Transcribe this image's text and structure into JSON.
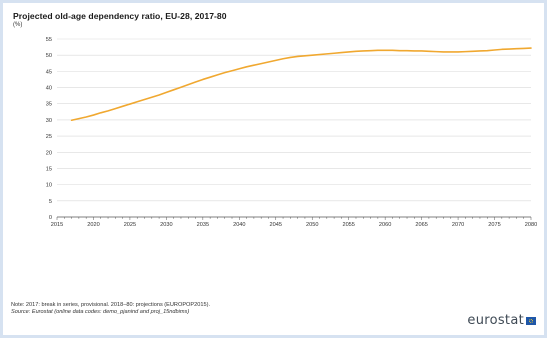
{
  "title": "Projected old-age dependency ratio, EU-28, 2017-80",
  "unit": "(%)",
  "note": "Note: 2017: break in series, provisional. 2018–80: projections (EUROPOP2015).",
  "source": "Source: Eurostat (online data codes: demo_pjanind and proj_15ndbims)",
  "logo_text": "eurostat",
  "colors": {
    "line": "#f0a830",
    "grid": "#d9d9d9",
    "axis": "#555555"
  },
  "chart_data": {
    "type": "line",
    "title": "Projected old-age dependency ratio, EU-28, 2017-80",
    "ylabel": "(%)",
    "xlim": [
      2015,
      2080
    ],
    "ylim": [
      0,
      55
    ],
    "yticks": [
      0,
      5,
      10,
      15,
      20,
      25,
      30,
      35,
      40,
      45,
      50,
      55
    ],
    "xticks": [
      2015,
      2020,
      2025,
      2030,
      2035,
      2040,
      2045,
      2050,
      2055,
      2060,
      2065,
      2070,
      2075,
      2080
    ],
    "grid": "horizontal",
    "series": [
      {
        "x": [
          2017,
          2018,
          2019,
          2020,
          2021,
          2022,
          2023,
          2024,
          2025,
          2026,
          2027,
          2028,
          2029,
          2030,
          2031,
          2032,
          2033,
          2034,
          2035,
          2036,
          2037,
          2038,
          2039,
          2040,
          2041,
          2042,
          2043,
          2044,
          2045,
          2046,
          2047,
          2048,
          2049,
          2050,
          2051,
          2052,
          2053,
          2054,
          2055,
          2056,
          2057,
          2058,
          2059,
          2060,
          2061,
          2062,
          2063,
          2064,
          2065,
          2066,
          2067,
          2068,
          2069,
          2070,
          2071,
          2072,
          2073,
          2074,
          2075,
          2076,
          2077,
          2078,
          2079,
          2080
        ],
        "values": [
          29.9,
          30.4,
          30.9,
          31.5,
          32.2,
          32.8,
          33.5,
          34.2,
          34.9,
          35.6,
          36.3,
          37.0,
          37.7,
          38.5,
          39.3,
          40.1,
          40.9,
          41.7,
          42.5,
          43.2,
          43.9,
          44.6,
          45.2,
          45.8,
          46.4,
          46.9,
          47.4,
          47.9,
          48.4,
          48.9,
          49.3,
          49.6,
          49.8,
          50.0,
          50.2,
          50.4,
          50.6,
          50.8,
          51.0,
          51.2,
          51.3,
          51.4,
          51.5,
          51.5,
          51.5,
          51.4,
          51.4,
          51.3,
          51.3,
          51.2,
          51.1,
          51.0,
          51.0,
          51.0,
          51.1,
          51.2,
          51.3,
          51.4,
          51.6,
          51.8,
          51.9,
          52.0,
          52.1,
          52.2
        ]
      }
    ]
  }
}
